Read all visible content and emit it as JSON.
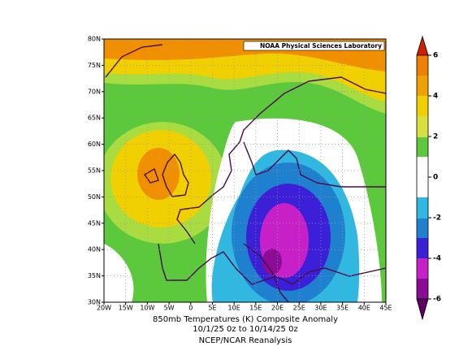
{
  "map": {
    "credit": "NOAA Physical Sciences Laboratory",
    "lat_lim": [
      30,
      80
    ],
    "lon_lim": [
      -20,
      45
    ],
    "lat_labels": [
      {
        "value": 30,
        "label": "30N"
      },
      {
        "value": 35,
        "label": "35N"
      },
      {
        "value": 40,
        "label": "40N"
      },
      {
        "value": 45,
        "label": "45N"
      },
      {
        "value": 50,
        "label": "50N"
      },
      {
        "value": 55,
        "label": "55N"
      },
      {
        "value": 60,
        "label": "60N"
      },
      {
        "value": 65,
        "label": "65N"
      },
      {
        "value": 70,
        "label": "70N"
      },
      {
        "value": 75,
        "label": "75N"
      },
      {
        "value": 80,
        "label": "80N"
      }
    ],
    "lon_labels": [
      {
        "value": -20,
        "label": "20W"
      },
      {
        "value": -15,
        "label": "15W"
      },
      {
        "value": -10,
        "label": "10W"
      },
      {
        "value": -5,
        "label": "5W"
      },
      0,
      {
        "value": 5,
        "label": "5E"
      },
      {
        "value": 10,
        "label": "10E"
      },
      {
        "value": 15,
        "label": "15E"
      },
      {
        "value": 20,
        "label": "20E"
      },
      {
        "value": 25,
        "label": "25E"
      },
      {
        "value": 30,
        "label": "30E"
      },
      {
        "value": 35,
        "label": "35E"
      },
      {
        "value": 40,
        "label": "40E"
      },
      {
        "value": 45,
        "label": "45E"
      }
    ]
  },
  "colorbar": {
    "lim": [
      -6,
      6
    ],
    "ticks": [
      -6,
      -4,
      -2,
      0,
      2,
      4,
      6
    ]
  },
  "caption": {
    "title": "850mb Temperatures (K)   Composite Anomaly",
    "dates": "10/1/25 0z  to 10/14/25 0z",
    "source": "NCEP/NCAR Reanalysis"
  }
}
